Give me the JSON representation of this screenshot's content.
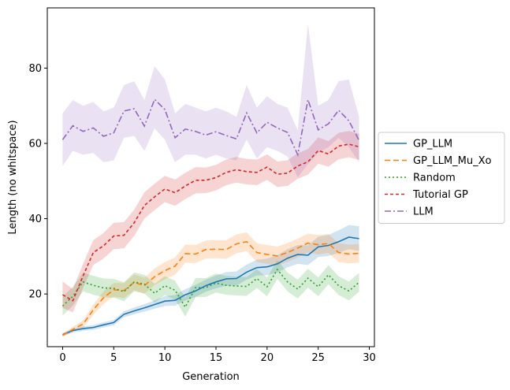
{
  "chart_data": {
    "type": "line",
    "xlabel": "Generation",
    "ylabel": "Length (no whitspace)",
    "xlim": [
      -1.5,
      30.5
    ],
    "ylim": [
      6,
      96
    ],
    "xticks": [
      0,
      5,
      10,
      15,
      20,
      25,
      30
    ],
    "yticks": [
      20,
      40,
      60,
      80
    ],
    "grid": false,
    "legend_position": "center-right-outside",
    "x": [
      0,
      1,
      2,
      3,
      4,
      5,
      6,
      7,
      8,
      9,
      10,
      11,
      12,
      13,
      14,
      15,
      16,
      17,
      18,
      19,
      20,
      21,
      22,
      23,
      24,
      25,
      26,
      27,
      28,
      29
    ],
    "series": [
      {
        "name": "GP_LLM",
        "color": "#1f77b4",
        "dash": "solid",
        "values": [
          9.2,
          10.3,
          10.8,
          11.1,
          11.8,
          12.4,
          14.6,
          15.5,
          16.3,
          17.2,
          18.1,
          18.3,
          19.8,
          20.8,
          22.2,
          23.2,
          24.0,
          24.1,
          25.8,
          27.0,
          27.2,
          28.0,
          29.5,
          30.5,
          30.3,
          32.5,
          32.9,
          33.9,
          35.1,
          34.7
        ],
        "lower": [
          8.8,
          9.8,
          10.2,
          10.5,
          11.1,
          11.7,
          13.8,
          14.6,
          15.3,
          16.1,
          16.8,
          16.9,
          18.3,
          19.2,
          20.6,
          21.5,
          22.2,
          22.2,
          23.8,
          24.9,
          25.0,
          25.7,
          27.1,
          28.0,
          27.7,
          29.8,
          30.1,
          30.9,
          31.9,
          31.4
        ],
        "upper": [
          9.6,
          10.8,
          11.4,
          11.7,
          12.5,
          13.1,
          15.4,
          16.4,
          17.3,
          18.3,
          19.4,
          19.7,
          21.3,
          22.4,
          23.8,
          24.9,
          25.8,
          26.0,
          27.8,
          29.1,
          29.4,
          30.3,
          31.9,
          33.0,
          32.9,
          35.2,
          35.7,
          36.9,
          38.3,
          38.0
        ]
      },
      {
        "name": "GP_LLM_Mu_Xo",
        "color": "#ff7f0e",
        "dash": "7,4",
        "values": [
          9.0,
          10.6,
          12.0,
          15.8,
          19.0,
          21.1,
          20.9,
          23.1,
          22.2,
          24.6,
          26.2,
          27.4,
          30.7,
          30.6,
          31.8,
          31.9,
          31.8,
          33.3,
          33.9,
          31.0,
          30.5,
          30.1,
          31.0,
          32.2,
          33.5,
          33.1,
          33.4,
          31.0,
          30.6,
          30.8
        ],
        "lower": [
          8.6,
          9.9,
          11.0,
          14.4,
          17.3,
          19.3,
          18.9,
          21.0,
          20.1,
          22.4,
          23.9,
          25.1,
          28.3,
          28.2,
          29.4,
          29.5,
          29.3,
          30.8,
          31.4,
          28.5,
          28.0,
          27.6,
          28.5,
          29.7,
          31.0,
          30.5,
          30.9,
          28.5,
          28.1,
          28.3
        ],
        "upper": [
          9.4,
          11.3,
          13.0,
          17.2,
          20.7,
          22.9,
          22.9,
          25.2,
          24.3,
          26.8,
          28.5,
          29.7,
          33.1,
          33.0,
          34.2,
          34.3,
          34.3,
          35.8,
          36.4,
          33.5,
          33.0,
          32.6,
          33.5,
          34.7,
          36.0,
          35.7,
          35.9,
          33.5,
          33.1,
          33.3
        ]
      },
      {
        "name": "Random",
        "color": "#2ca02c",
        "dash": "2,3",
        "values": [
          16.8,
          19.4,
          23.2,
          22.3,
          21.6,
          21.5,
          20.6,
          23.2,
          22.6,
          20.2,
          22.2,
          21.0,
          16.5,
          21.7,
          21.7,
          22.9,
          22.3,
          22.1,
          22.0,
          24.1,
          21.9,
          26.5,
          23.2,
          21.3,
          24.2,
          21.9,
          25.1,
          22.2,
          20.8,
          23.1
        ],
        "lower": [
          14.3,
          16.9,
          20.7,
          19.8,
          19.1,
          19.0,
          18.1,
          20.7,
          20.1,
          17.7,
          19.7,
          18.5,
          14.0,
          19.2,
          19.2,
          20.4,
          19.8,
          19.6,
          19.5,
          21.6,
          19.4,
          24.0,
          20.7,
          18.8,
          21.7,
          19.4,
          22.6,
          19.7,
          18.3,
          20.6
        ],
        "upper": [
          19.3,
          21.9,
          25.7,
          24.8,
          24.1,
          24.0,
          23.1,
          25.7,
          25.1,
          22.7,
          24.7,
          23.5,
          19.0,
          24.2,
          24.2,
          25.4,
          24.8,
          24.6,
          24.5,
          26.6,
          24.4,
          29.0,
          25.7,
          23.8,
          26.7,
          24.4,
          27.6,
          24.7,
          23.3,
          25.6
        ]
      },
      {
        "name": "Tutorial GP",
        "color": "#d62728",
        "dash": "4,3",
        "values": [
          19.8,
          18.2,
          24.8,
          31.0,
          32.8,
          35.4,
          35.6,
          38.9,
          43.5,
          45.8,
          47.9,
          46.9,
          48.7,
          50.2,
          50.2,
          50.9,
          52.3,
          53.0,
          52.5,
          52.3,
          53.7,
          51.8,
          52.1,
          54.0,
          55.1,
          58.1,
          57.2,
          59.3,
          59.8,
          59.1
        ],
        "lower": [
          16.3,
          15.1,
          21.6,
          27.7,
          29.4,
          31.9,
          32.1,
          35.4,
          40.0,
          42.3,
          44.4,
          43.4,
          45.2,
          46.7,
          46.8,
          47.5,
          48.9,
          49.6,
          49.1,
          48.9,
          50.3,
          48.4,
          48.7,
          50.6,
          51.7,
          54.6,
          53.8,
          55.8,
          56.3,
          55.6
        ],
        "upper": [
          23.3,
          21.3,
          28.0,
          34.3,
          36.2,
          38.9,
          39.1,
          42.4,
          47.0,
          49.3,
          51.4,
          50.4,
          52.2,
          53.7,
          53.6,
          54.3,
          55.7,
          56.4,
          55.9,
          55.7,
          57.1,
          55.2,
          55.5,
          57.4,
          58.5,
          61.6,
          60.6,
          62.8,
          63.3,
          62.6
        ]
      },
      {
        "name": "LLM",
        "color": "#9467bd",
        "dash": "8,3,2,3",
        "values": [
          61.0,
          64.7,
          63.2,
          64.1,
          61.9,
          62.8,
          68.6,
          69.2,
          64.6,
          71.7,
          69.0,
          61.5,
          63.8,
          63.2,
          62.2,
          63.1,
          62.1,
          61.2,
          68.1,
          62.8,
          65.6,
          64.1,
          62.9,
          57.0,
          71.6,
          63.6,
          65.2,
          68.8,
          66.0,
          60.8
        ],
        "lower": [
          54.0,
          58.0,
          57.0,
          57.5,
          55.0,
          55.5,
          61.5,
          62.0,
          58.0,
          64.0,
          61.0,
          55.0,
          57.0,
          57.0,
          56.0,
          57.0,
          56.0,
          55.5,
          61.0,
          56.0,
          59.0,
          58.0,
          56.5,
          51.0,
          54.5,
          57.5,
          59.0,
          61.5,
          59.0,
          55.0
        ],
        "upper": [
          68.0,
          71.5,
          70.0,
          71.0,
          68.5,
          69.5,
          75.5,
          76.5,
          71.5,
          80.5,
          77.0,
          68.0,
          70.5,
          69.5,
          68.5,
          69.5,
          68.5,
          67.0,
          75.5,
          69.5,
          72.5,
          70.5,
          69.5,
          63.5,
          91.7,
          70.0,
          71.5,
          76.5,
          77.0,
          67.0
        ]
      }
    ]
  }
}
